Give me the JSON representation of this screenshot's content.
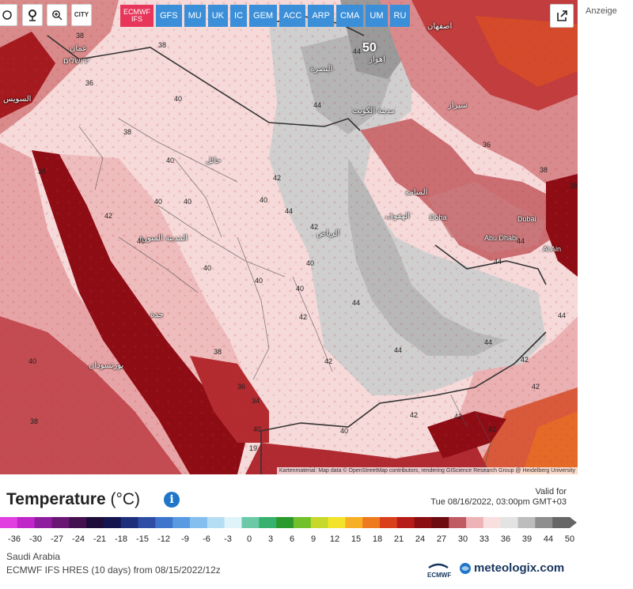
{
  "toolbar": {
    "city_button": "CITY",
    "models": [
      {
        "label": "ECMWF\nIFS",
        "active": true
      },
      {
        "label": "GFS"
      },
      {
        "label": "MU"
      },
      {
        "label": "UK"
      },
      {
        "label": "IC"
      },
      {
        "label": "GEM"
      },
      {
        "label": "ACC"
      },
      {
        "label": "ARP"
      },
      {
        "label": "CMA"
      },
      {
        "label": "UM"
      },
      {
        "label": "RU"
      }
    ]
  },
  "ad_label": "Anzeige",
  "map": {
    "attribution": "Kartenmaterial: Map data © OpenStreetMap contributors, rendering GIScience Research Group @ Heidelberg University",
    "cities": {
      "kuwait": "مدينة الكويت",
      "doha": "Doha",
      "dubai": "Dubai",
      "abu_dhabi": "Abu Dhabi",
      "al_ain": "Al Ain",
      "riyadh": "الرياض",
      "medina": "المدينة المنورة",
      "jeddah": "جدة",
      "port_sudan": "بورتسودان",
      "amman": "عمان",
      "jerusalem": "ירושלים",
      "suez": "السويس",
      "basra": "البصرة",
      "ahvaz": "اهواز",
      "isfahan": "اصفهان",
      "shiraz": "شيراز",
      "manama": "المنامة",
      "hofuf": "الهفوف",
      "hail": "حائل"
    },
    "big_label": "50",
    "temps": [
      "38",
      "36",
      "40",
      "38",
      "40",
      "40",
      "40",
      "40",
      "40",
      "42",
      "40",
      "40",
      "40",
      "42",
      "40",
      "42",
      "42",
      "42",
      "44",
      "44",
      "44",
      "44",
      "44",
      "44",
      "44",
      "42",
      "42",
      "42",
      "40",
      "40",
      "38",
      "38",
      "36",
      "34",
      "19",
      "38",
      "38",
      "36",
      "38",
      "44",
      "38",
      "44",
      "42",
      "42",
      "40"
    ]
  },
  "legend": {
    "title": "Temperature",
    "unit": "(°C)",
    "valid_label": "Valid for",
    "valid_time": "Tue 08/16/2022, 03:00pm GMT+03",
    "ticks": [
      "-36",
      "-30",
      "-27",
      "-24",
      "-21",
      "-18",
      "-15",
      "-12",
      "-9",
      "-6",
      "-3",
      "0",
      "3",
      "6",
      "9",
      "12",
      "15",
      "18",
      "21",
      "24",
      "27",
      "30",
      "33",
      "36",
      "39",
      "44",
      "50"
    ],
    "colors": [
      "#e23fe0",
      "#c027c8",
      "#8f1e9e",
      "#6a1673",
      "#45104f",
      "#1e0d3a",
      "#14144f",
      "#1d2f7a",
      "#2e4ea5",
      "#3f74cc",
      "#5a9ae0",
      "#84bff0",
      "#b5def5",
      "#dff4f8",
      "#6cc9a8",
      "#37b26e",
      "#2b9a2e",
      "#72c02b",
      "#c6d92a",
      "#f3e32b",
      "#f7b026",
      "#ee7a1f",
      "#d93f1b",
      "#b51c17",
      "#8a0e12",
      "#6d0b10",
      "#c05a63",
      "#eeb3b6",
      "#f8e0e0",
      "#e3e3e3",
      "#bdbdbd",
      "#8e8e8e",
      "#666666"
    ],
    "region": "Saudi Arabia",
    "model_info": "ECMWF IFS HRES (10 days) from 08/15/2022/12z",
    "ecmwf_logo": "ECMWF",
    "brand": "meteologix.com"
  }
}
